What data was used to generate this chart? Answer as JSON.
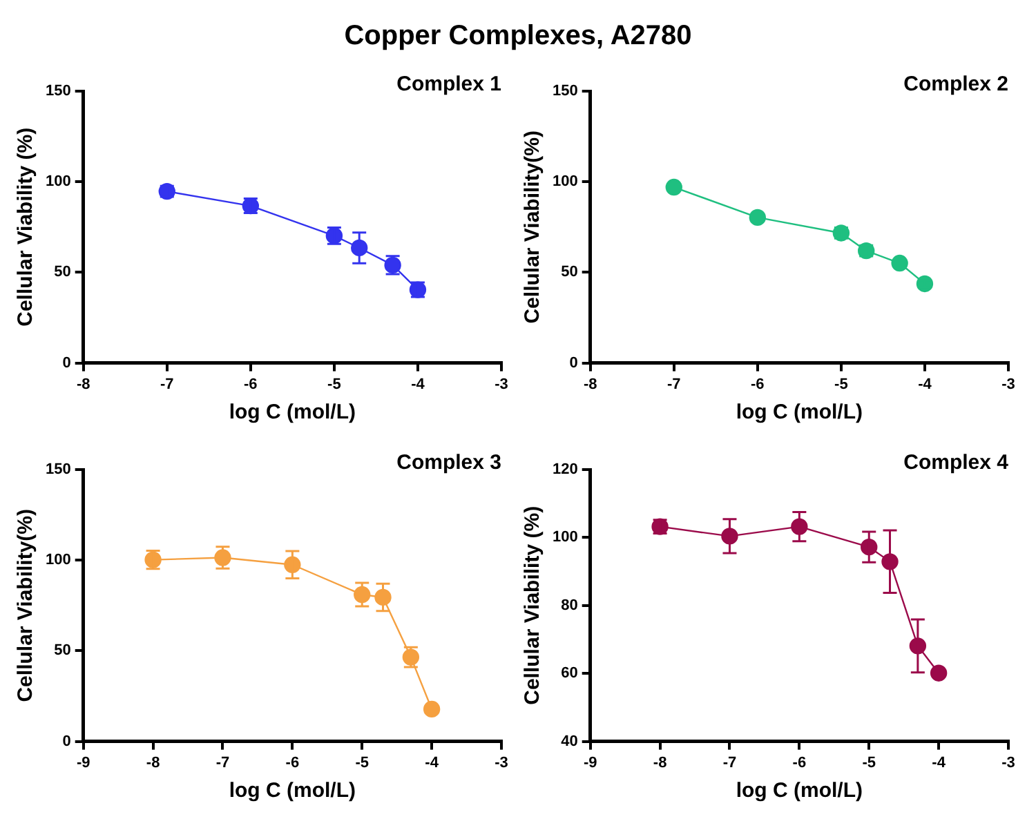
{
  "chart_data": [
    {
      "type": "line",
      "title": "Copper Complexes, A2780",
      "annotations": [
        "Complex 1"
      ],
      "xlabel": "log C (mol/L)",
      "ylabel": "Cellular Viability (%)",
      "x": [
        -7,
        -6,
        -5,
        -4.7,
        -4.3,
        -4
      ],
      "xlim": [
        -8,
        -3
      ],
      "xticks": [
        -8,
        -7,
        -6,
        -5,
        -4,
        -3
      ],
      "ylim": [
        0,
        150
      ],
      "yticks": [
        0,
        50,
        100,
        150
      ],
      "grid": false,
      "legend": false,
      "marker": "circle",
      "series": [
        {
          "color": "#3333ee",
          "values": [
            94.7,
            86.7,
            70.2,
            63.5,
            54,
            40.4
          ],
          "errors": [
            3,
            4,
            4.5,
            8.5,
            5,
            4
          ]
        }
      ]
    },
    {
      "type": "line",
      "annotations": [
        "Complex 2"
      ],
      "xlabel": "log C (mol/L)",
      "ylabel": "Cellular Viability(%)",
      "x": [
        -7,
        -6,
        -5,
        -4.7,
        -4.3,
        -4
      ],
      "xlim": [
        -8,
        -3
      ],
      "xticks": [
        -8,
        -7,
        -6,
        -5,
        -4,
        -3
      ],
      "ylim": [
        0,
        150
      ],
      "yticks": [
        0,
        50,
        100,
        150
      ],
      "grid": false,
      "legend": false,
      "marker": "circle",
      "series": [
        {
          "color": "#1fbf80",
          "values": [
            97,
            80.3,
            71.7,
            61.9,
            55.1,
            43.7
          ],
          "errors": [
            null,
            null,
            3,
            3,
            null,
            2
          ]
        }
      ]
    },
    {
      "type": "line",
      "annotations": [
        "Complex 3"
      ],
      "xlabel": "log C (mol/L)",
      "ylabel": "Cellular Viability(%)",
      "x": [
        -8,
        -7,
        -6,
        -5,
        -4.7,
        -4.3,
        -4
      ],
      "xlim": [
        -9,
        -3
      ],
      "xticks": [
        -9,
        -8,
        -7,
        -6,
        -5,
        -4,
        -3
      ],
      "ylim": [
        0,
        150
      ],
      "yticks": [
        0,
        50,
        100,
        150
      ],
      "grid": false,
      "legend": false,
      "marker": "circle",
      "series": [
        {
          "color": "#f5a040",
          "values": [
            100.2,
            101.4,
            97.5,
            81,
            79.5,
            46.5,
            17.8
          ],
          "errors": [
            5,
            6,
            7.5,
            6.5,
            7.5,
            5.5,
            null
          ]
        }
      ]
    },
    {
      "type": "line",
      "annotations": [
        "Complex 4"
      ],
      "xlabel": "log C (mol/L)",
      "ylabel": "Cellular Viability (%)",
      "x": [
        -8,
        -7,
        -6,
        -5,
        -4.7,
        -4.3,
        -4
      ],
      "xlim": [
        -9,
        -3
      ],
      "xticks": [
        -9,
        -8,
        -7,
        -6,
        -5,
        -4,
        -3
      ],
      "ylim": [
        40,
        120
      ],
      "yticks": [
        40,
        60,
        80,
        100,
        120
      ],
      "grid": false,
      "legend": false,
      "marker": "circle",
      "series": [
        {
          "color": "#9b0a4a",
          "values": [
            103.2,
            100.4,
            103.2,
            97.2,
            92.9,
            68.1,
            60.1
          ],
          "errors": [
            2,
            5,
            4.3,
            4.5,
            9.2,
            7.8,
            null
          ]
        }
      ]
    }
  ]
}
